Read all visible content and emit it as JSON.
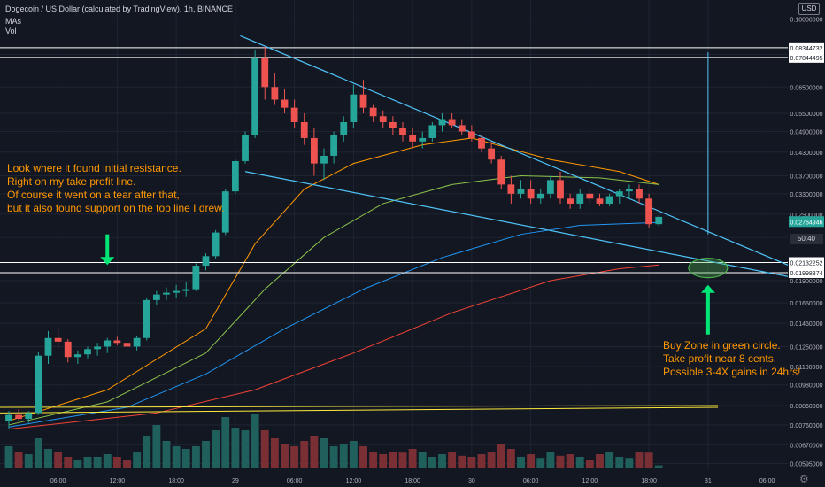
{
  "header": {
    "title": "Dogecoin / US Dollar (calculated by TradingView), 1h, BINANCE",
    "indicator_mas": "MAs",
    "indicator_vol": "Vol"
  },
  "currency_badge": "USD",
  "countdown": "50:40",
  "annotations": {
    "left_note": "Look where it found initial resistance.\nRight on my take profit line.\nOf course it went on a tear after that,\nbut it also found support on the top line I drew.",
    "right_note": "Buy Zone in green circle.\nTake profit near 8 cents.\nPossible 3-4X gains in 24hrs!"
  },
  "colors": {
    "background": "#131722",
    "grid": "#1f2433",
    "up": "#26a69a",
    "down": "#ef5350",
    "up_volume": "#1f5f5c",
    "down_volume": "#7a2f35",
    "trendline": "#4fc3f7",
    "note_text": "#ff9800",
    "arrow": "#00e676",
    "yellow_line": "#ffeb3b",
    "ma_orange": "#ff9800",
    "ma_green": "#8bc34a",
    "ma_blue": "#2196f3",
    "ma_red": "#f44336"
  },
  "chart_data": {
    "type": "candlestick",
    "symbol": "Dogecoin / US Dollar",
    "interval": "1h",
    "y_scale": "log",
    "ylim": [
      0.0058,
      0.108
    ],
    "price_ticks": [
      0.1,
      0.08,
      0.065,
      0.055,
      0.049,
      0.043,
      0.037,
      0.033,
      0.029,
      0.025,
      0.019,
      0.0165,
      0.0145,
      0.0125,
      0.011,
      0.0098,
      0.0086,
      0.0076,
      0.0067,
      0.00595
    ],
    "price_tick_labels": [
      "0.10000000",
      "0.08000000",
      "0.06500000",
      "0.05500000",
      "0.04900000",
      "0.04300000",
      "0.03700000",
      "0.03300000",
      "0.02900000",
      "0.02500000",
      "0.01900000",
      "0.01650000",
      "0.01450000",
      "0.01250000",
      "0.01100000",
      "0.00980000",
      "0.00860000",
      "0.00760000",
      "0.00670000",
      "0.00595000"
    ],
    "time_ticks": [
      {
        "label": "06:00",
        "bar": 5
      },
      {
        "label": "12:00",
        "bar": 11
      },
      {
        "label": "18:00",
        "bar": 17
      },
      {
        "label": "29",
        "bar": 23
      },
      {
        "label": "06:00",
        "bar": 29
      },
      {
        "label": "12:00",
        "bar": 35
      },
      {
        "label": "18:00",
        "bar": 41
      },
      {
        "label": "30",
        "bar": 47
      },
      {
        "label": "06:00",
        "bar": 53
      },
      {
        "label": "12:00",
        "bar": 59
      },
      {
        "label": "18:00",
        "bar": 65
      },
      {
        "label": "31",
        "bar": 71
      },
      {
        "label": "06:00",
        "bar": 77
      }
    ],
    "bar_count_visible": 80,
    "candles": [
      [
        0.0078,
        0.0083,
        0.0074,
        0.0081
      ],
      [
        0.0081,
        0.0084,
        0.0078,
        0.0079
      ],
      [
        0.0079,
        0.0083,
        0.0077,
        0.0082
      ],
      [
        0.0082,
        0.0121,
        0.0081,
        0.0118
      ],
      [
        0.0118,
        0.0138,
        0.0112,
        0.0132
      ],
      [
        0.0132,
        0.014,
        0.0124,
        0.0129
      ],
      [
        0.0129,
        0.0131,
        0.0113,
        0.0117
      ],
      [
        0.0117,
        0.0122,
        0.0112,
        0.0119
      ],
      [
        0.0119,
        0.0125,
        0.0116,
        0.0123
      ],
      [
        0.0123,
        0.0128,
        0.0118,
        0.0125
      ],
      [
        0.0125,
        0.0132,
        0.012,
        0.013
      ],
      [
        0.013,
        0.0133,
        0.0126,
        0.0128
      ],
      [
        0.0128,
        0.013,
        0.0123,
        0.0125
      ],
      [
        0.0125,
        0.0134,
        0.0122,
        0.0132
      ],
      [
        0.0132,
        0.017,
        0.013,
        0.0168
      ],
      [
        0.0168,
        0.0178,
        0.0163,
        0.0174
      ],
      [
        0.0174,
        0.0182,
        0.0168,
        0.0176
      ],
      [
        0.0176,
        0.0185,
        0.017,
        0.0178
      ],
      [
        0.0178,
        0.0189,
        0.0172,
        0.018
      ],
      [
        0.018,
        0.0212,
        0.0178,
        0.0209
      ],
      [
        0.0209,
        0.0226,
        0.0203,
        0.0222
      ],
      [
        0.0222,
        0.0262,
        0.0218,
        0.0258
      ],
      [
        0.0258,
        0.034,
        0.0254,
        0.0335
      ],
      [
        0.0335,
        0.041,
        0.033,
        0.0406
      ],
      [
        0.0406,
        0.049,
        0.04,
        0.048
      ],
      [
        0.048,
        0.082,
        0.047,
        0.078
      ],
      [
        0.078,
        0.084,
        0.06,
        0.065
      ],
      [
        0.065,
        0.071,
        0.058,
        0.06
      ],
      [
        0.06,
        0.064,
        0.055,
        0.057
      ],
      [
        0.057,
        0.06,
        0.05,
        0.052
      ],
      [
        0.052,
        0.055,
        0.045,
        0.047
      ],
      [
        0.047,
        0.05,
        0.037,
        0.04
      ],
      [
        0.04,
        0.044,
        0.036,
        0.042
      ],
      [
        0.042,
        0.049,
        0.04,
        0.048
      ],
      [
        0.048,
        0.054,
        0.046,
        0.052
      ],
      [
        0.052,
        0.066,
        0.05,
        0.062
      ],
      [
        0.062,
        0.068,
        0.055,
        0.057
      ],
      [
        0.057,
        0.058,
        0.052,
        0.054
      ],
      [
        0.054,
        0.056,
        0.05,
        0.052
      ],
      [
        0.052,
        0.054,
        0.048,
        0.05
      ],
      [
        0.05,
        0.052,
        0.046,
        0.048
      ],
      [
        0.048,
        0.05,
        0.044,
        0.046
      ],
      [
        0.046,
        0.049,
        0.044,
        0.047
      ],
      [
        0.047,
        0.052,
        0.046,
        0.051
      ],
      [
        0.051,
        0.055,
        0.049,
        0.053
      ],
      [
        0.053,
        0.055,
        0.05,
        0.051
      ],
      [
        0.051,
        0.053,
        0.048,
        0.049
      ],
      [
        0.049,
        0.051,
        0.046,
        0.047
      ],
      [
        0.047,
        0.048,
        0.043,
        0.044
      ],
      [
        0.044,
        0.046,
        0.04,
        0.041
      ],
      [
        0.041,
        0.042,
        0.034,
        0.035
      ],
      [
        0.035,
        0.037,
        0.031,
        0.033
      ],
      [
        0.033,
        0.036,
        0.032,
        0.034
      ],
      [
        0.034,
        0.036,
        0.031,
        0.032
      ],
      [
        0.032,
        0.034,
        0.031,
        0.033
      ],
      [
        0.033,
        0.037,
        0.032,
        0.036
      ],
      [
        0.036,
        0.038,
        0.031,
        0.032
      ],
      [
        0.032,
        0.033,
        0.03,
        0.031
      ],
      [
        0.031,
        0.034,
        0.03,
        0.033
      ],
      [
        0.033,
        0.034,
        0.031,
        0.032
      ],
      [
        0.032,
        0.033,
        0.0305,
        0.031
      ],
      [
        0.031,
        0.033,
        0.0305,
        0.0325
      ],
      [
        0.0325,
        0.034,
        0.031,
        0.0335
      ],
      [
        0.0335,
        0.035,
        0.032,
        0.034
      ],
      [
        0.034,
        0.035,
        0.031,
        0.032
      ],
      [
        0.032,
        0.033,
        0.0265,
        0.0272
      ],
      [
        0.0272,
        0.0288,
        0.0268,
        0.0285
      ]
    ],
    "volume": [
      0.4,
      0.3,
      0.25,
      0.55,
      0.35,
      0.3,
      0.2,
      0.15,
      0.2,
      0.2,
      0.25,
      0.2,
      0.15,
      0.3,
      0.6,
      0.8,
      0.5,
      0.4,
      0.35,
      0.4,
      0.5,
      0.7,
      0.95,
      0.75,
      0.7,
      1.0,
      0.7,
      0.55,
      0.45,
      0.4,
      0.5,
      0.6,
      0.55,
      0.4,
      0.45,
      0.5,
      0.4,
      0.3,
      0.25,
      0.3,
      0.28,
      0.35,
      0.3,
      0.2,
      0.25,
      0.3,
      0.22,
      0.2,
      0.25,
      0.3,
      0.45,
      0.35,
      0.2,
      0.25,
      0.18,
      0.3,
      0.22,
      0.25,
      0.2,
      0.15,
      0.25,
      0.3,
      0.2,
      0.18,
      0.3,
      0.28,
      0.04
    ],
    "moving_averages": [
      {
        "color": "#ff9800",
        "points": [
          [
            0,
            0.0078
          ],
          [
            10,
            0.0095
          ],
          [
            20,
            0.014
          ],
          [
            25,
            0.024
          ],
          [
            30,
            0.034
          ],
          [
            35,
            0.04
          ],
          [
            42,
            0.045
          ],
          [
            47,
            0.047
          ],
          [
            55,
            0.041
          ],
          [
            62,
            0.038
          ],
          [
            66,
            0.035
          ]
        ]
      },
      {
        "color": "#8bc34a",
        "points": [
          [
            0,
            0.0076
          ],
          [
            10,
            0.0088
          ],
          [
            20,
            0.012
          ],
          [
            26,
            0.018
          ],
          [
            32,
            0.025
          ],
          [
            38,
            0.031
          ],
          [
            45,
            0.035
          ],
          [
            52,
            0.037
          ],
          [
            60,
            0.0365
          ],
          [
            66,
            0.035
          ]
        ]
      },
      {
        "color": "#2196f3",
        "points": [
          [
            0,
            0.0075
          ],
          [
            12,
            0.0085
          ],
          [
            20,
            0.0105
          ],
          [
            28,
            0.014
          ],
          [
            36,
            0.018
          ],
          [
            44,
            0.022
          ],
          [
            52,
            0.0255
          ],
          [
            58,
            0.027
          ],
          [
            66,
            0.0275
          ]
        ]
      },
      {
        "color": "#f44336",
        "points": [
          [
            0,
            0.0074
          ],
          [
            15,
            0.0082
          ],
          [
            25,
            0.0095
          ],
          [
            35,
            0.012
          ],
          [
            45,
            0.0155
          ],
          [
            55,
            0.019
          ],
          [
            62,
            0.0205
          ],
          [
            66,
            0.021
          ]
        ]
      }
    ],
    "horizontal_levels": [
      {
        "price": 0.08344732,
        "label": "0.08344732"
      },
      {
        "price": 0.07844495,
        "label": "0.07844495"
      },
      {
        "price": 0.02132252,
        "label": "0.02132252"
      },
      {
        "price": 0.01998374,
        "label": "0.01998374"
      }
    ],
    "current_price": {
      "price": 0.02764946,
      "label": "0.02764946"
    },
    "trendlines": [
      {
        "from": [
          23.5,
          0.09
        ],
        "to": [
          80,
          0.0205
        ]
      },
      {
        "from": [
          24,
          0.038
        ],
        "to": [
          80,
          0.0193
        ]
      },
      {
        "from": [
          -1,
          0.0085
        ],
        "to": [
          72,
          0.0086
        ]
      },
      {
        "from": [
          -1,
          0.0082
        ],
        "to": [
          72,
          0.0085
        ]
      }
    ],
    "target_line": {
      "bar": 71,
      "from_price": 0.0255,
      "to_price": 0.081
    },
    "buy_zone": {
      "bar": 71,
      "price": 0.0206
    },
    "arrows": [
      {
        "bar": 10,
        "from_price": 0.0255,
        "to_price": 0.021,
        "direction": "down"
      },
      {
        "bar": 71,
        "from_price": 0.0135,
        "to_price": 0.0185,
        "direction": "up"
      }
    ]
  }
}
